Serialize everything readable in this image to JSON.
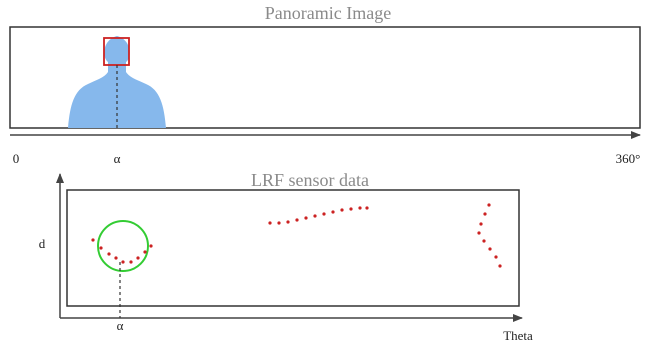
{
  "panorama": {
    "title": "Panoramic Image",
    "axis_labels": [
      "0",
      "α",
      "360°"
    ]
  },
  "lrf": {
    "title": "LRF sensor data",
    "y_label": "d",
    "x_marker": "α",
    "x_label": "Theta"
  }
}
